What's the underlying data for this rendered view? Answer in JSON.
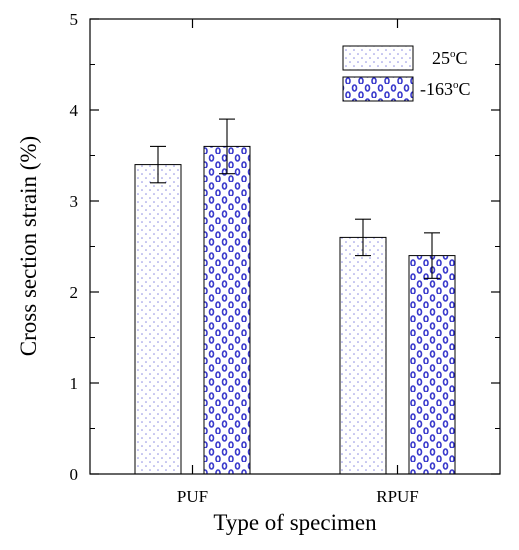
{
  "chart_data": {
    "type": "bar",
    "title": "",
    "xlabel": "Type of specimen",
    "ylabel": "Cross section strain (%)",
    "ylim": [
      0,
      5
    ],
    "yticks": [
      0,
      1,
      2,
      3,
      4,
      5
    ],
    "categories": [
      "PUF",
      "RPUF"
    ],
    "series": [
      {
        "name": "25°C",
        "legend_base": "25",
        "legend_sup": "o",
        "legend_tail": "C",
        "values": [
          3.4,
          2.6
        ],
        "errors": [
          0.2,
          0.2
        ],
        "color": "#8a8ae0"
      },
      {
        "name": "-163°C",
        "legend_base": "-163",
        "legend_sup": "o",
        "legend_tail": "C",
        "values": [
          3.6,
          2.4
        ],
        "errors": [
          0.3,
          0.25
        ],
        "color": "#3a3acc"
      }
    ],
    "legend_position": "top-right",
    "grid": false
  }
}
